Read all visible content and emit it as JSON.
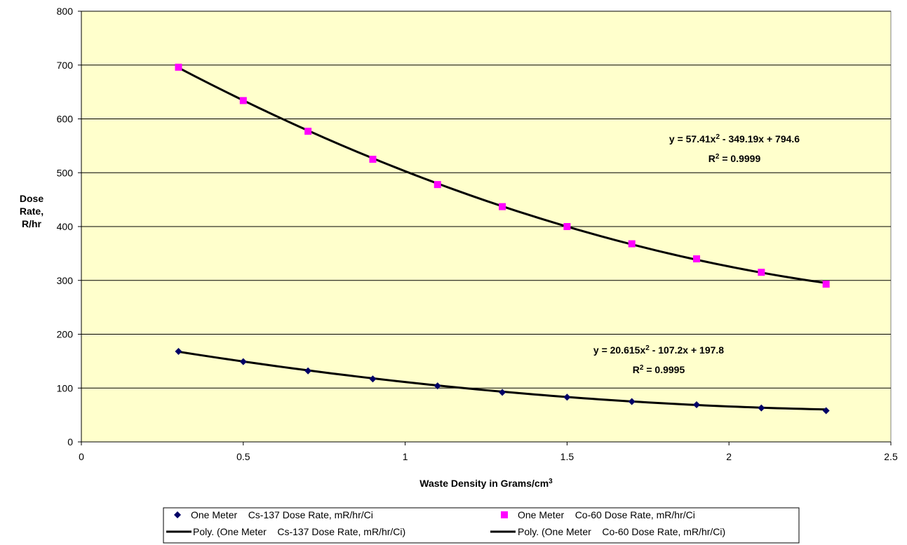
{
  "chart_data": {
    "type": "scatter",
    "title": "",
    "xlabel": "Waste Density in Grams/cm",
    "xlabel_sup": "3",
    "ylabel_lines": [
      "Dose",
      "Rate,",
      "R/hr"
    ],
    "xlim": [
      0,
      2.5
    ],
    "ylim": [
      0,
      800
    ],
    "x_ticks": [
      0,
      0.5,
      1,
      1.5,
      2,
      2.5
    ],
    "x_tick_labels": [
      "0",
      "0.5",
      "1",
      "1.5",
      "2",
      "2.5"
    ],
    "y_ticks": [
      0,
      100,
      200,
      300,
      400,
      500,
      600,
      700,
      800
    ],
    "y_tick_labels": [
      "0",
      "100",
      "200",
      "300",
      "400",
      "500",
      "600",
      "700",
      "800"
    ],
    "grid": "horizontal",
    "plot_background": "#ffffcc",
    "legend_position": "bottom",
    "series": [
      {
        "name": "One Meter    Cs-137 Dose Rate, mR/hr/Ci",
        "marker": "diamond",
        "color": "#000066",
        "x": [
          0.3,
          0.5,
          0.7,
          0.9,
          1.1,
          1.3,
          1.5,
          1.7,
          1.9,
          2.1,
          2.3
        ],
        "y": [
          168,
          149,
          132,
          117,
          104,
          92,
          83,
          75,
          69,
          63,
          58
        ]
      },
      {
        "name": "One Meter    Co-60 Dose Rate, mR/hr/Ci",
        "marker": "square",
        "color": "#ff00ff",
        "x": [
          0.3,
          0.5,
          0.7,
          0.9,
          1.1,
          1.3,
          1.5,
          1.7,
          1.9,
          2.1,
          2.3
        ],
        "y": [
          696,
          634,
          577,
          525,
          478,
          437,
          400,
          368,
          340,
          315,
          293
        ]
      }
    ],
    "trendlines": [
      {
        "name": "Poly. (One Meter    Cs-137 Dose Rate, mR/hr/Ci)",
        "color": "#000000",
        "coefficients": [
          20.615,
          -107.2,
          197.8
        ],
        "x_range": [
          0.3,
          2.3
        ],
        "equation_prefix": "y = 20.615x",
        "equation_sup": "2",
        "equation_suffix": " - 107.2x + 197.8",
        "r2_prefix": "R",
        "r2_sup": "2",
        "r2_suffix": " = 0.9995"
      },
      {
        "name": "Poly. (One Meter    Co-60 Dose Rate, mR/hr/Ci)",
        "color": "#000000",
        "coefficients": [
          57.41,
          -349.19,
          794.6
        ],
        "x_range": [
          0.3,
          2.3
        ],
        "equation_prefix": "y = 57.41x",
        "equation_sup": "2",
        "equation_suffix": " - 349.19x + 794.6",
        "r2_prefix": "R",
        "r2_sup": "2",
        "r2_suffix": " = 0.9999"
      }
    ]
  }
}
